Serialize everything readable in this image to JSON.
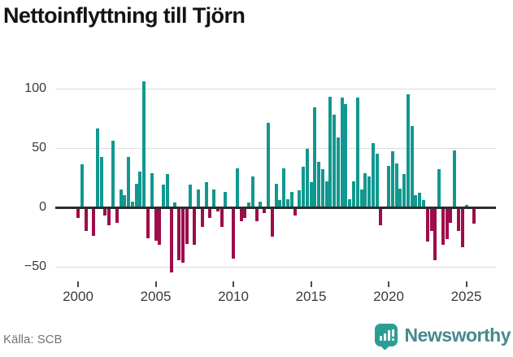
{
  "page": {
    "title": "Nettoinflyttning till Tjörn",
    "source": "Källa: SCB",
    "brand": "Newsworthy"
  },
  "chart_data": {
    "type": "bar",
    "title": "Nettoinflyttning till Tjörn",
    "frequency": "quarterly",
    "x_start": "2000-Q1",
    "x_end": "2025-Q3",
    "series": [
      {
        "name": "Nettoinflyttning",
        "values": [
          -8,
          36,
          -19,
          0,
          -23,
          66,
          42,
          -6,
          -14,
          56,
          -12,
          15,
          10,
          42,
          5,
          20,
          30,
          106,
          -25,
          29,
          -27,
          -31,
          19,
          28,
          -54,
          4,
          -44,
          -46,
          -30,
          19,
          -31,
          15,
          -16,
          21,
          -8,
          15,
          -3,
          -16,
          13,
          0,
          -42,
          33,
          -11,
          -8,
          4,
          26,
          -11,
          5,
          -4,
          71,
          -24,
          20,
          6,
          33,
          7,
          13,
          -6,
          14,
          34,
          49,
          21,
          84,
          38,
          32,
          22,
          93,
          78,
          59,
          92,
          87,
          7,
          22,
          92,
          15,
          29,
          26,
          54,
          45,
          -14,
          0,
          35,
          47,
          37,
          16,
          28,
          95,
          68,
          10,
          12,
          6,
          -28,
          -19,
          -44,
          32,
          -31,
          -26,
          -12,
          48,
          -19,
          -33,
          2,
          0,
          -13
        ]
      }
    ],
    "start_year": 2000,
    "xticks": [
      2000,
      2005,
      2010,
      2015,
      2020,
      2025
    ],
    "xtick_labels": [
      "2000",
      "2005",
      "2010",
      "2015",
      "2020",
      "2025"
    ],
    "yticks": [
      -50,
      0,
      50,
      100
    ],
    "ytick_labels": [
      "−50",
      "0",
      "50",
      "100"
    ],
    "ylim": [
      -60,
      115
    ],
    "grid": true,
    "legend": "none",
    "positive_color": "#11988f",
    "negative_color": "#9e0c4b",
    "zero_line_color": "#2b2b2b",
    "gridline_color": "#dcdcdc"
  }
}
